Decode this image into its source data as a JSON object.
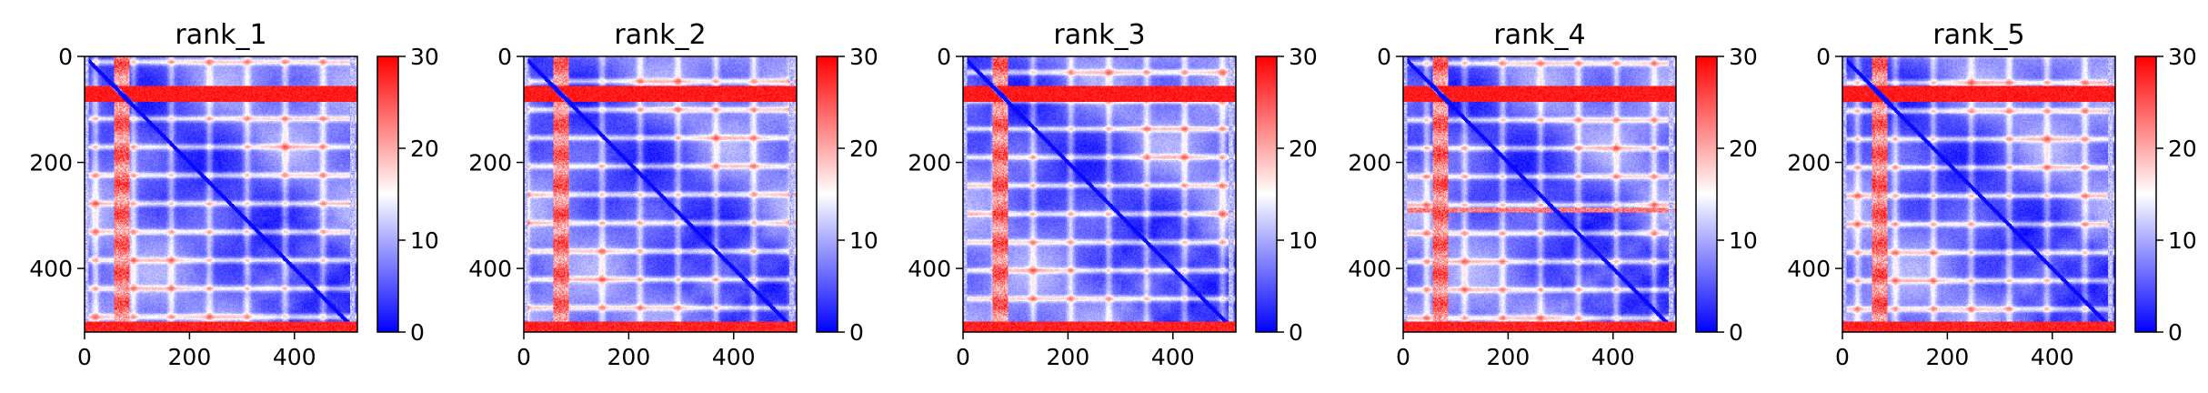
{
  "chart_data": [
    {
      "type": "heatmap",
      "title": "rank_1",
      "colormap": "bwr",
      "colors": {
        "low": "#0000ff",
        "mid": "#ffffff",
        "high": "#ff0000"
      },
      "vmin": 0,
      "vmax": 30,
      "matrix_size": 520,
      "xlim": [
        0,
        520
      ],
      "ylim": [
        520,
        0
      ],
      "x_ticks": [
        0,
        200,
        400
      ],
      "y_ticks": [
        0,
        200,
        400
      ],
      "colorbar_ticks": [
        0,
        10,
        20,
        30
      ],
      "high_band": [
        55,
        85
      ],
      "extra_band": null
    },
    {
      "type": "heatmap",
      "title": "rank_2",
      "colormap": "bwr",
      "colors": {
        "low": "#0000ff",
        "mid": "#ffffff",
        "high": "#ff0000"
      },
      "vmin": 0,
      "vmax": 30,
      "matrix_size": 520,
      "xlim": [
        0,
        520
      ],
      "ylim": [
        520,
        0
      ],
      "x_ticks": [
        0,
        200,
        400
      ],
      "y_ticks": [
        0,
        200,
        400
      ],
      "colorbar_ticks": [
        0,
        10,
        20,
        30
      ],
      "high_band": [
        55,
        85
      ],
      "extra_band": null
    },
    {
      "type": "heatmap",
      "title": "rank_3",
      "colormap": "bwr",
      "colors": {
        "low": "#0000ff",
        "mid": "#ffffff",
        "high": "#ff0000"
      },
      "vmin": 0,
      "vmax": 30,
      "matrix_size": 520,
      "xlim": [
        0,
        520
      ],
      "ylim": [
        520,
        0
      ],
      "x_ticks": [
        0,
        200,
        400
      ],
      "y_ticks": [
        0,
        200,
        400
      ],
      "colorbar_ticks": [
        0,
        10,
        20,
        30
      ],
      "high_band": [
        55,
        85
      ],
      "extra_band": null
    },
    {
      "type": "heatmap",
      "title": "rank_4",
      "colormap": "bwr",
      "colors": {
        "low": "#0000ff",
        "mid": "#ffffff",
        "high": "#ff0000"
      },
      "vmin": 0,
      "vmax": 30,
      "matrix_size": 520,
      "xlim": [
        0,
        520
      ],
      "ylim": [
        520,
        0
      ],
      "x_ticks": [
        0,
        200,
        400
      ],
      "y_ticks": [
        0,
        200,
        400
      ],
      "colorbar_ticks": [
        0,
        10,
        20,
        30
      ],
      "high_band": [
        55,
        85
      ],
      "extra_band": [
        285,
        292
      ]
    },
    {
      "type": "heatmap",
      "title": "rank_5",
      "colormap": "bwr",
      "colors": {
        "low": "#0000ff",
        "mid": "#ffffff",
        "high": "#ff0000"
      },
      "vmin": 0,
      "vmax": 30,
      "matrix_size": 520,
      "xlim": [
        0,
        520
      ],
      "ylim": [
        520,
        0
      ],
      "x_ticks": [
        0,
        200,
        400
      ],
      "y_ticks": [
        0,
        200,
        400
      ],
      "colorbar_ticks": [
        0,
        10,
        20,
        30
      ],
      "high_band": [
        55,
        85
      ],
      "extra_band": null
    }
  ]
}
